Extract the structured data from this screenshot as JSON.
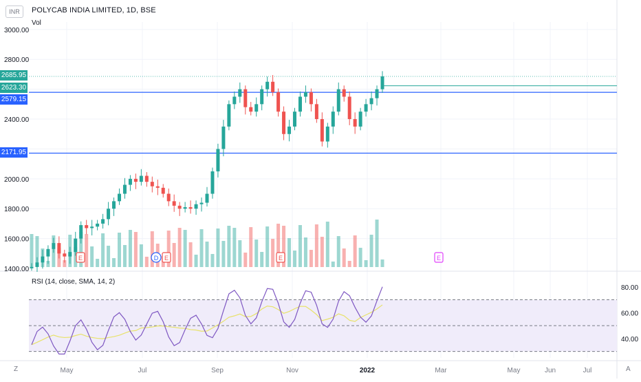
{
  "header": {
    "currency_badge": "INR",
    "symbol_title": "POLYCAB INDIA LIMITED, 1D, BSE",
    "volume_label": "Vol"
  },
  "rsi": {
    "label": "RSI (14, close, SMA, 14, 2)",
    "levels": [
      "80.00",
      "60.00",
      "40.00"
    ]
  },
  "price_axis": {
    "ticks": [
      "3000.00",
      "2800.00",
      "2400.00",
      "2000.00",
      "1800.00",
      "1600.00",
      "1400.00"
    ]
  },
  "price_tags": [
    {
      "text": "2685.95",
      "color": "#26a69a"
    },
    {
      "text": "2623.30",
      "color": "#26a69a"
    },
    {
      "text": "2579.15",
      "color": "#2962ff"
    },
    {
      "text": "2171.95",
      "color": "#2962ff"
    }
  ],
  "time_axis": {
    "labels": [
      "May",
      "Jul",
      "Sep",
      "Nov",
      "2022",
      "Mar",
      "May",
      "Jun",
      "Jul"
    ],
    "left_button": "Z",
    "right_button": "A"
  },
  "events": [
    {
      "text": "E",
      "type": "earnings-past"
    },
    {
      "text": "D",
      "type": "dividend"
    },
    {
      "text": "E",
      "type": "earnings-past"
    },
    {
      "text": "E",
      "type": "earnings-past"
    },
    {
      "text": "E",
      "type": "earnings-future"
    }
  ],
  "colors": {
    "up": "#26a69a",
    "down": "#ef5350",
    "horizontal_line": "#2962ff",
    "rsi_line": "#7e57c2",
    "rsi_ma": "#e8e26a",
    "rsi_band": "#f0ecfa",
    "grid": "#f0f3fa"
  },
  "chart_data": {
    "type": "candlestick",
    "price_ylim": [
      1400,
      3050
    ],
    "rsi_ylim": [
      25,
      90
    ],
    "horizontal_levels": [
      2579.15,
      2171.95
    ],
    "last_price": 2685.95,
    "close_path": [
      {
        "x": 0,
        "y": 1410
      },
      {
        "x": 4,
        "y": 1440
      },
      {
        "x": 8,
        "y": 1480
      },
      {
        "x": 12,
        "y": 1530
      },
      {
        "x": 16,
        "y": 1570
      },
      {
        "x": 20,
        "y": 1500
      },
      {
        "x": 24,
        "y": 1480
      },
      {
        "x": 28,
        "y": 1510
      },
      {
        "x": 32,
        "y": 1600
      },
      {
        "x": 36,
        "y": 1690
      },
      {
        "x": 40,
        "y": 1670
      },
      {
        "x": 44,
        "y": 1680
      },
      {
        "x": 48,
        "y": 1700
      },
      {
        "x": 52,
        "y": 1730
      },
      {
        "x": 56,
        "y": 1800
      },
      {
        "x": 60,
        "y": 1850
      },
      {
        "x": 64,
        "y": 1900
      },
      {
        "x": 68,
        "y": 1960
      },
      {
        "x": 72,
        "y": 2000
      },
      {
        "x": 76,
        "y": 1980
      },
      {
        "x": 80,
        "y": 2020
      },
      {
        "x": 84,
        "y": 1980
      },
      {
        "x": 88,
        "y": 1950
      },
      {
        "x": 92,
        "y": 1940
      },
      {
        "x": 96,
        "y": 1900
      },
      {
        "x": 100,
        "y": 1850
      },
      {
        "x": 104,
        "y": 1820
      },
      {
        "x": 108,
        "y": 1800
      },
      {
        "x": 112,
        "y": 1810
      },
      {
        "x": 116,
        "y": 1800
      },
      {
        "x": 120,
        "y": 1830
      },
      {
        "x": 124,
        "y": 1840
      },
      {
        "x": 128,
        "y": 1900
      },
      {
        "x": 132,
        "y": 2050
      },
      {
        "x": 136,
        "y": 2200
      },
      {
        "x": 140,
        "y": 2350
      },
      {
        "x": 144,
        "y": 2500
      },
      {
        "x": 148,
        "y": 2550
      },
      {
        "x": 152,
        "y": 2600
      },
      {
        "x": 156,
        "y": 2480
      },
      {
        "x": 160,
        "y": 2450
      },
      {
        "x": 164,
        "y": 2500
      },
      {
        "x": 168,
        "y": 2600
      },
      {
        "x": 172,
        "y": 2650
      },
      {
        "x": 176,
        "y": 2580
      },
      {
        "x": 180,
        "y": 2450
      },
      {
        "x": 184,
        "y": 2300
      },
      {
        "x": 188,
        "y": 2350
      },
      {
        "x": 192,
        "y": 2450
      },
      {
        "x": 196,
        "y": 2550
      },
      {
        "x": 200,
        "y": 2580
      },
      {
        "x": 204,
        "y": 2500
      },
      {
        "x": 208,
        "y": 2400
      },
      {
        "x": 212,
        "y": 2250
      },
      {
        "x": 216,
        "y": 2350
      },
      {
        "x": 220,
        "y": 2450
      },
      {
        "x": 224,
        "y": 2600
      },
      {
        "x": 228,
        "y": 2550
      },
      {
        "x": 232,
        "y": 2400
      },
      {
        "x": 236,
        "y": 2350
      },
      {
        "x": 240,
        "y": 2450
      },
      {
        "x": 244,
        "y": 2500
      },
      {
        "x": 248,
        "y": 2540
      },
      {
        "x": 252,
        "y": 2600
      },
      {
        "x": 256,
        "y": 2685.95
      }
    ]
  }
}
